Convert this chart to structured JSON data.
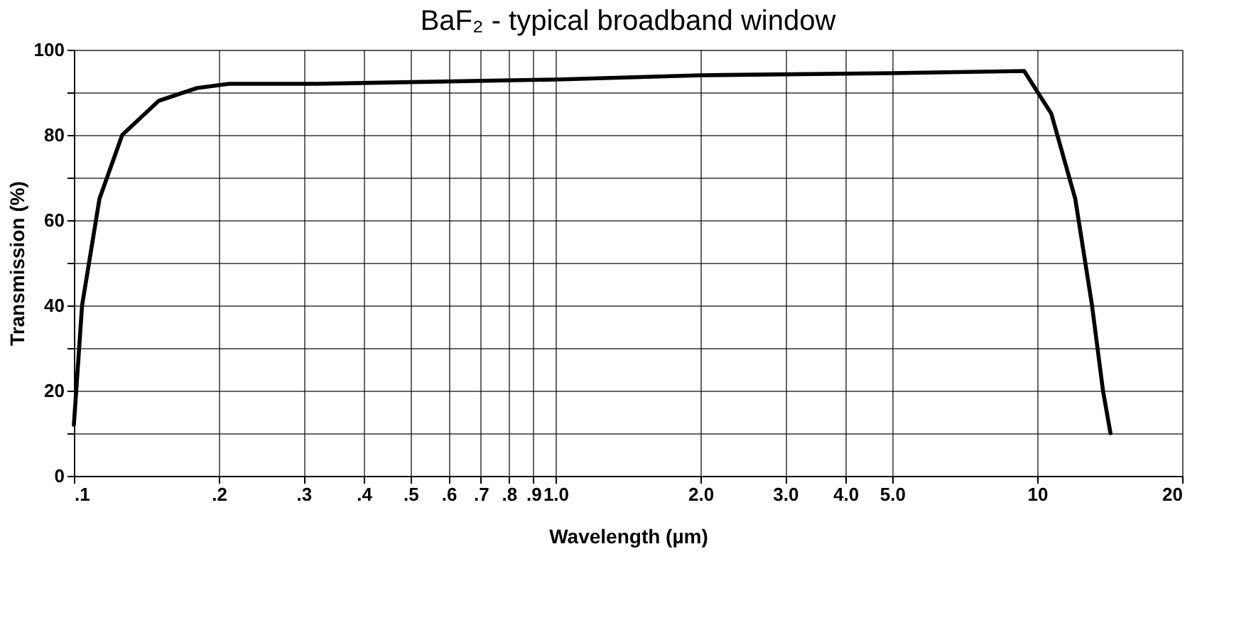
{
  "chart_data": {
    "type": "line",
    "title": "BaF₂ - typical broadband window",
    "xlabel": "Wavelength (µm)",
    "ylabel": "Transmission (%)",
    "log": "x",
    "grid": true,
    "marker": "none",
    "line_style": "solid",
    "xlim": [
      0.1,
      20
    ],
    "ylim": [
      0,
      100
    ],
    "xticks": [
      {
        "value": 0.1,
        "label": ".1"
      },
      {
        "value": 0.2,
        "label": ".2"
      },
      {
        "value": 0.3,
        "label": ".3"
      },
      {
        "value": 0.4,
        "label": ".4"
      },
      {
        "value": 0.5,
        "label": ".5"
      },
      {
        "value": 0.6,
        "label": ".6"
      },
      {
        "value": 0.7,
        "label": ".7"
      },
      {
        "value": 0.8,
        "label": ".8"
      },
      {
        "value": 0.9,
        "label": ".9"
      },
      {
        "value": 1,
        "label": "1.0"
      },
      {
        "value": 2,
        "label": "2.0"
      },
      {
        "value": 3,
        "label": "3.0"
      },
      {
        "value": 4,
        "label": "4.0"
      },
      {
        "value": 5,
        "label": "5.0"
      },
      10,
      20
    ],
    "yticks": [
      0,
      {
        "value": 10,
        "label": null
      },
      20,
      {
        "value": 30,
        "label": null
      },
      40,
      {
        "value": 50,
        "label": null
      },
      60,
      {
        "value": 70,
        "label": null
      },
      80,
      {
        "value": 90,
        "label": null
      },
      100
    ],
    "x": [
      0.1,
      0.104,
      0.113,
      0.126,
      0.15,
      0.18,
      0.21,
      0.32,
      1.0,
      2.0,
      5.0,
      9.4,
      10.7,
      12,
      13,
      13.7,
      14.2
    ],
    "series": [
      {
        "color": "#000000",
        "values": [
          12,
          40,
          65,
          80,
          88,
          91,
          92,
          92,
          93,
          94,
          94.5,
          95,
          85,
          65,
          40,
          20,
          10
        ]
      }
    ]
  }
}
